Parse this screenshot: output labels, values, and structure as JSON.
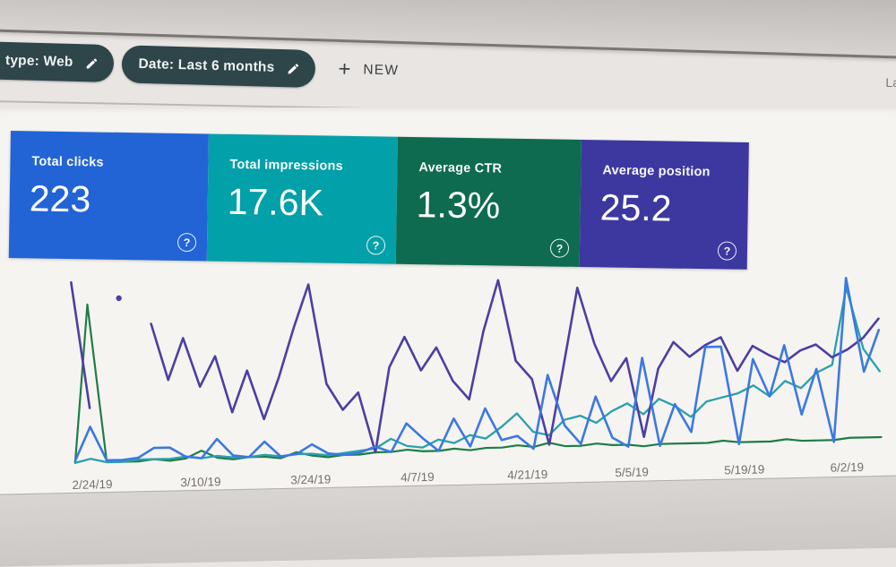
{
  "window": {
    "top_right_partial_text": "La"
  },
  "filter_bar": {
    "chip_bg": "#2e4549",
    "chips": [
      {
        "label": "type: Web",
        "icon": "pencil-icon"
      },
      {
        "label": "Date: Last 6 months",
        "icon": "pencil-icon"
      }
    ],
    "new_button": {
      "plus": "+",
      "label": "NEW"
    }
  },
  "metric_cards": [
    {
      "label": "Total clicks",
      "value": "223",
      "color": "#2264d6",
      "help_icon": "?"
    },
    {
      "label": "Total impressions",
      "value": "17.6K",
      "color": "#02a0a8",
      "help_icon": "?"
    },
    {
      "label": "Average CTR",
      "value": "1.3%",
      "color": "#0e6b4f",
      "help_icon": "?"
    },
    {
      "label": "Average position",
      "value": "25.2",
      "color": "#3c38a0",
      "help_icon": "?"
    }
  ],
  "chart_data": {
    "type": "line",
    "title": "",
    "xlabel": "",
    "ylabel": "",
    "y_axis_visible": false,
    "grid": false,
    "legend_position": "none",
    "note": "Search Console performance chart; no y-axis shown, values are approximate percent of plot height. null = data gap (isolated point rendered as dot).",
    "x_tick_labels": [
      "2/24/19",
      "3/10/19",
      "3/24/19",
      "4/7/19",
      "4/21/19",
      "5/5/19",
      "5/19/19",
      "6/2/19"
    ],
    "series": [
      {
        "name": "CTR",
        "color": "#1e7d45",
        "width": 2.2,
        "values": [
          1,
          85,
          1,
          1,
          1,
          2,
          1,
          2,
          6,
          2,
          1,
          2,
          2,
          1,
          4,
          2,
          1,
          2,
          2,
          3,
          3,
          4,
          3,
          3,
          4,
          3,
          4,
          4,
          5,
          4,
          6,
          4,
          4,
          5,
          4,
          4,
          3,
          4,
          4,
          4,
          4,
          5,
          4,
          4,
          4,
          5,
          4,
          4,
          4,
          5,
          5,
          5
        ]
      },
      {
        "name": "Impressions",
        "color": "#2aa0ac",
        "width": 2.3,
        "values": [
          1,
          3,
          1,
          1,
          2,
          2,
          2,
          3,
          2,
          3,
          2,
          2,
          3,
          2,
          3,
          3,
          2,
          3,
          4,
          5,
          10,
          6,
          5,
          9,
          7,
          11,
          9,
          15,
          22,
          12,
          10,
          18,
          20,
          16,
          22,
          26,
          20,
          28,
          24,
          18,
          26,
          28,
          30,
          34,
          28,
          36,
          32,
          40,
          44,
          85,
          52,
          40
        ]
      },
      {
        "name": "Position",
        "color": "#4c3fa3",
        "width": 2.6,
        "values": [
          97,
          30,
          null,
          88,
          null,
          74,
          44,
          66,
          40,
          56,
          26,
          48,
          22,
          44,
          70,
          93,
          40,
          26,
          35,
          3,
          48,
          64,
          46,
          58,
          40,
          30,
          66,
          93,
          50,
          40,
          5,
          46,
          88,
          58,
          38,
          50,
          8,
          44,
          58,
          50,
          56,
          60,
          42,
          55,
          50,
          46,
          52,
          55,
          48,
          52,
          58,
          68
        ]
      },
      {
        "name": "Clicks",
        "color": "#3b79e1",
        "width": 2.6,
        "values": [
          2,
          20,
          2,
          2,
          3,
          8,
          8,
          3,
          2,
          12,
          3,
          2,
          10,
          2,
          3,
          8,
          3,
          2,
          3,
          6,
          3,
          18,
          10,
          3,
          20,
          5,
          25,
          8,
          10,
          3,
          42,
          15,
          5,
          30,
          8,
          3,
          50,
          3,
          25,
          10,
          55,
          55,
          3,
          48,
          28,
          55,
          18,
          42,
          3,
          90,
          40,
          62
        ]
      }
    ]
  }
}
